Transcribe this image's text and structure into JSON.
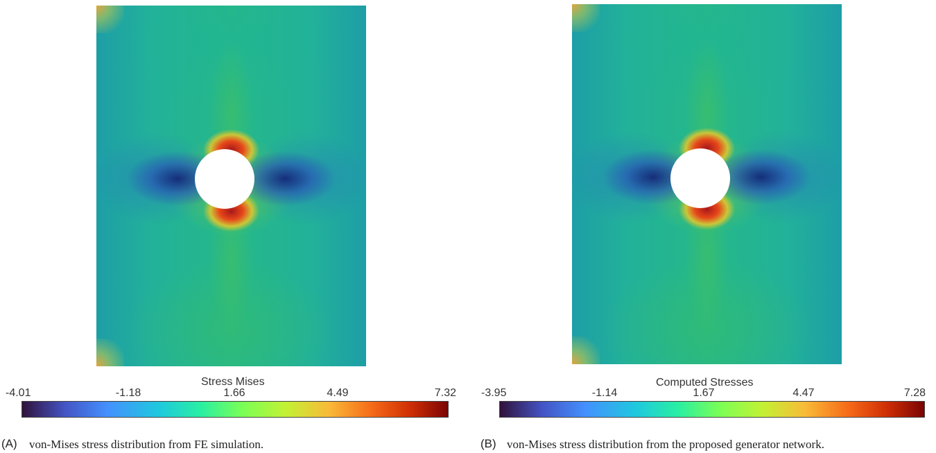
{
  "panels": [
    {
      "colorbar_title": "Stress Mises",
      "ticks": [
        "-4.01",
        "-1.18",
        "1.66",
        "4.49",
        "7.32"
      ],
      "caption_label": "(A)",
      "caption_text": "von-Mises stress distribution from FE simulation."
    },
    {
      "colorbar_title": "Computed Stresses",
      "ticks": [
        "-3.95",
        "-1.14",
        "1.67",
        "4.47",
        "7.28"
      ],
      "caption_label": "(B)",
      "caption_text": "von-Mises stress distribution from the proposed generator network."
    }
  ],
  "colormap": {
    "low": "#30123b",
    "mid": "#29efa2",
    "high": "#7a0403"
  }
}
